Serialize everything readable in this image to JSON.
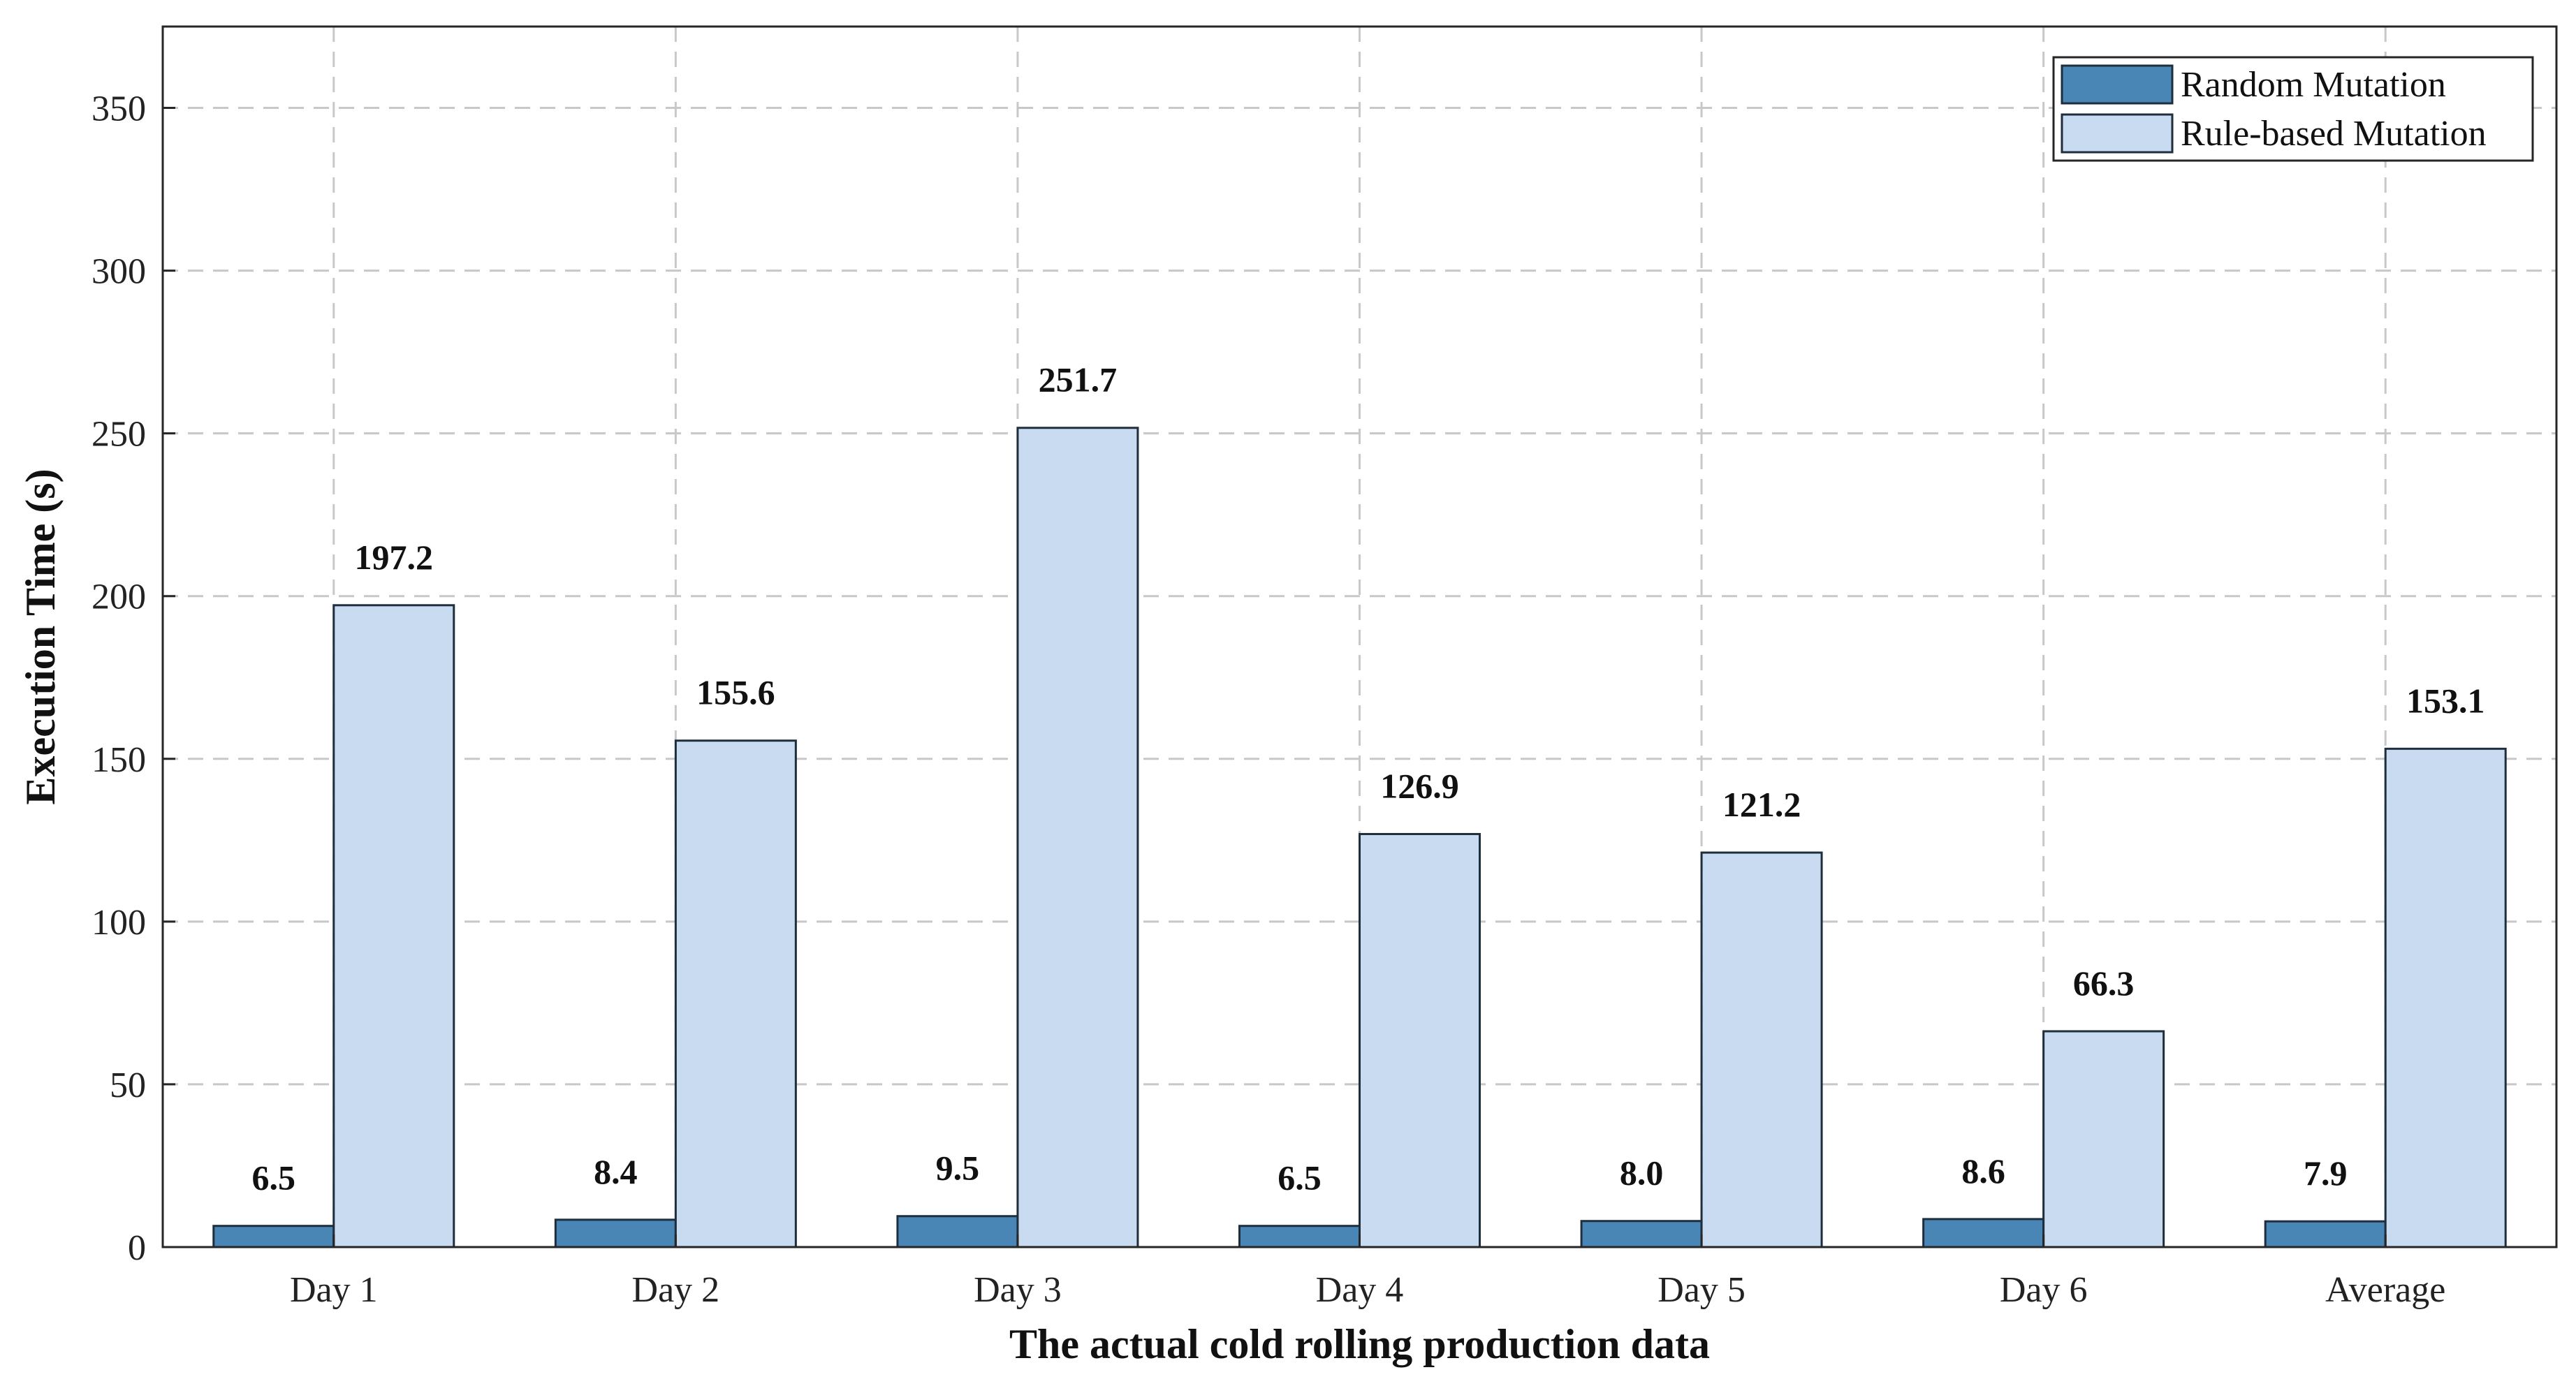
{
  "chart_data": {
    "type": "bar",
    "title": "",
    "xlabel": "The actual cold rolling production data",
    "ylabel": "Execution Time (s)",
    "categories": [
      "Day 1",
      "Day 2",
      "Day 3",
      "Day 4",
      "Day 5",
      "Day 6",
      "Average"
    ],
    "series": [
      {
        "name": "Random Mutation",
        "color": "#4a86b5",
        "values": [
          6.5,
          8.4,
          9.5,
          6.5,
          8.0,
          8.6,
          7.9
        ],
        "labels": [
          "6.5",
          "8.4",
          "9.5",
          "6.5",
          "8.0",
          "8.6",
          "7.9"
        ]
      },
      {
        "name": "Rule-based Mutation",
        "color": "#c8dbf0",
        "values": [
          197.2,
          155.6,
          251.7,
          126.9,
          121.2,
          66.3,
          153.1
        ],
        "labels": [
          "197.2",
          "155.6",
          "251.7",
          "126.9",
          "121.2",
          "66.3",
          "153.1"
        ]
      }
    ],
    "ylim": [
      0,
      375
    ],
    "yticks": [
      0,
      50,
      100,
      150,
      200,
      250,
      300,
      350
    ],
    "grid": true,
    "legend_position": "top-right"
  }
}
